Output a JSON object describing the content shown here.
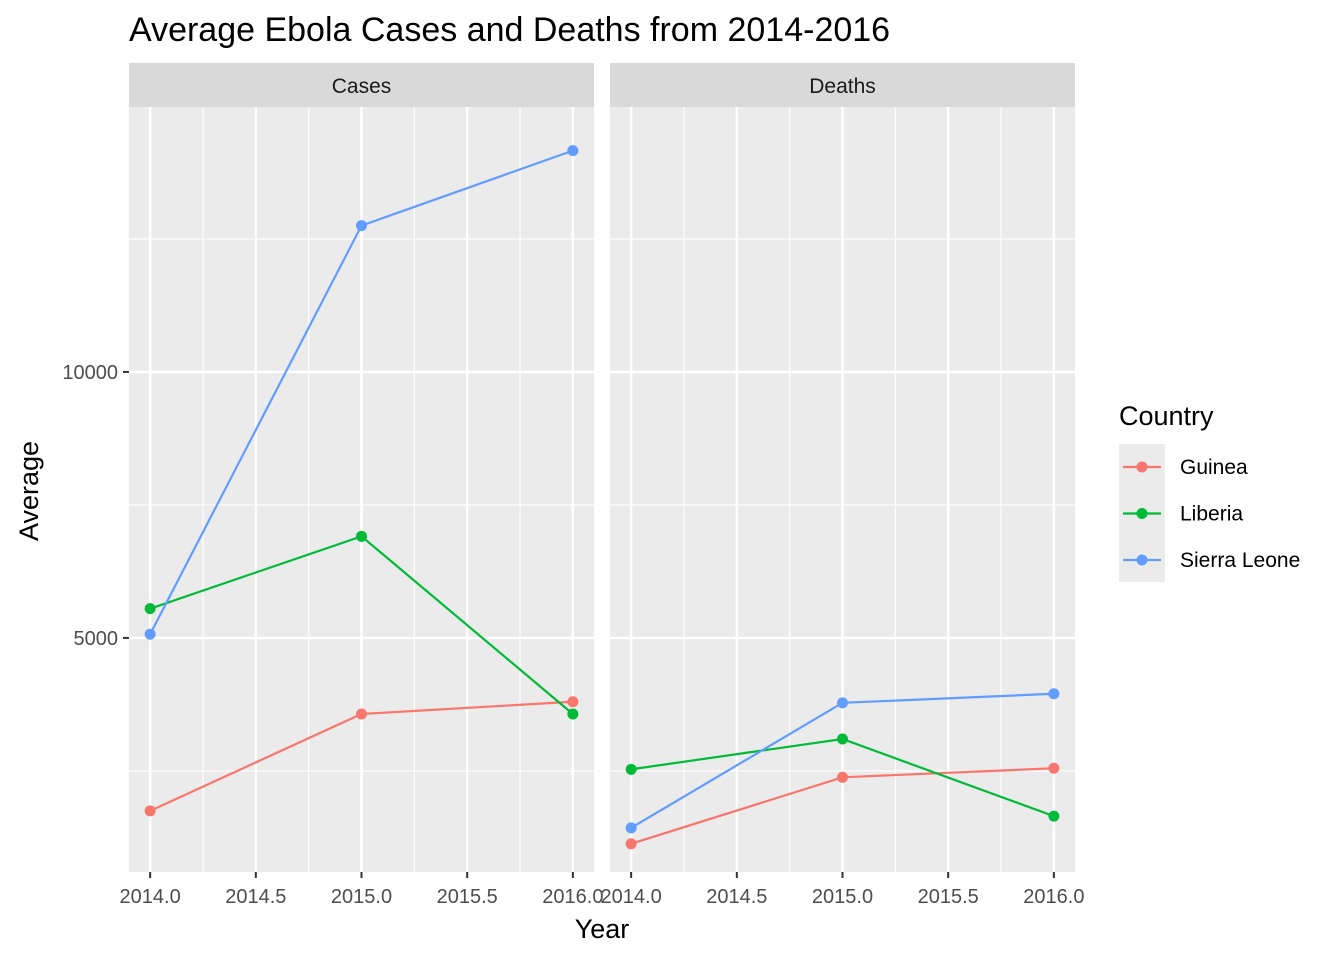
{
  "chart_data": {
    "type": "line",
    "title": "Average Ebola Cases and Deaths from 2014-2016",
    "xlabel": "Year",
    "ylabel": "Average",
    "x": [
      2014,
      2015,
      2016
    ],
    "xlim": [
      2013.9,
      2016.1
    ],
    "ylim": [
      600,
      14980
    ],
    "x_ticks": [
      2014.0,
      2014.5,
      2015.0,
      2015.5,
      2016.0
    ],
    "x_tick_labels": [
      "2014.0",
      "2014.5",
      "2015.0",
      "2015.5",
      "2016.0"
    ],
    "y_ticks": [
      5000,
      10000
    ],
    "y_tick_labels": [
      "5000",
      "10000"
    ],
    "grid": true,
    "legend": {
      "title": "Country",
      "position": "right"
    },
    "panels": [
      {
        "label": "Cases",
        "series": [
          {
            "name": "Guinea",
            "values": [
              1750,
              3570,
              3800
            ]
          },
          {
            "name": "Liberia",
            "values": [
              5550,
              6910,
              3570
            ]
          },
          {
            "name": "Sierra Leone",
            "values": [
              5070,
              12750,
              14160
            ]
          }
        ]
      },
      {
        "label": "Deaths",
        "series": [
          {
            "name": "Guinea",
            "values": [
              1130,
              2380,
              2550
            ]
          },
          {
            "name": "Liberia",
            "values": [
              2530,
              3100,
              1650
            ]
          },
          {
            "name": "Sierra Leone",
            "values": [
              1430,
              3780,
              3950
            ]
          }
        ]
      }
    ],
    "colors": {
      "Guinea": "#f8766d",
      "Liberia": "#00ba38",
      "Sierra Leone": "#619cff"
    }
  }
}
